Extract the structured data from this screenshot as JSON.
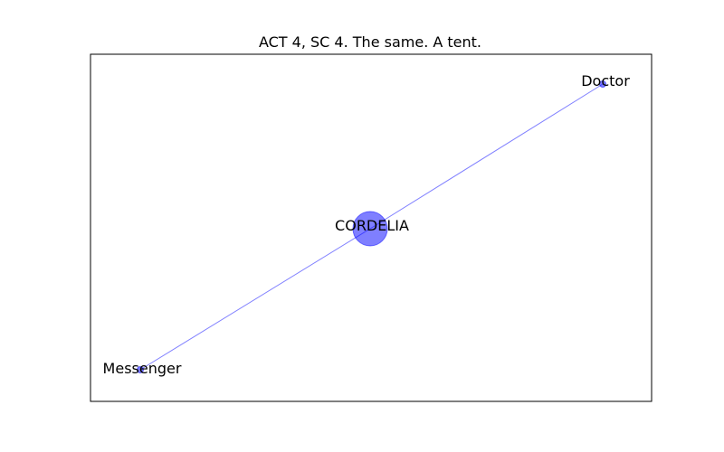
{
  "title": "ACT 4, SC 4. The same. A tent.",
  "colors": {
    "node": "#0000ff",
    "edge": "#0000ff",
    "frame": "#000000",
    "background": "#ffffff"
  },
  "nodes": [
    {
      "id": "cordelia",
      "label": "CORDELIA",
      "weight": "large"
    },
    {
      "id": "doctor",
      "label": "Doctor",
      "weight": "small"
    },
    {
      "id": "messenger",
      "label": "Messenger",
      "weight": "small"
    }
  ],
  "edges": [
    {
      "source": "doctor",
      "target": "cordelia"
    },
    {
      "source": "cordelia",
      "target": "messenger"
    }
  ]
}
